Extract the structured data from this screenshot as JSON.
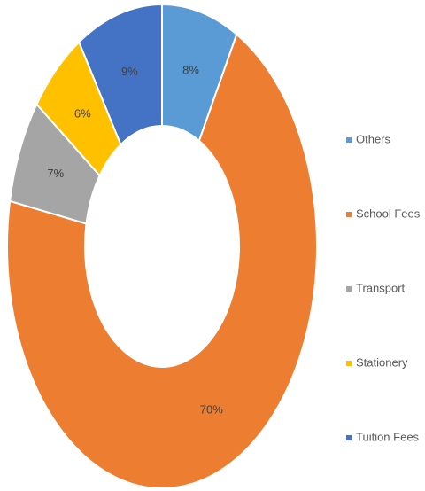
{
  "chart_data": {
    "type": "donut",
    "categories": [
      "Others",
      "School Fees",
      "Transport",
      "Stationery",
      "Tuition Fees"
    ],
    "values": [
      8,
      70,
      7,
      6,
      9
    ],
    "value_labels": [
      "8%",
      "70%",
      "7%",
      "6%",
      "9%"
    ],
    "colors": [
      "#5b9bd5",
      "#ed7d31",
      "#a5a5a5",
      "#ffc000",
      "#4472c4"
    ],
    "legend": "right"
  }
}
